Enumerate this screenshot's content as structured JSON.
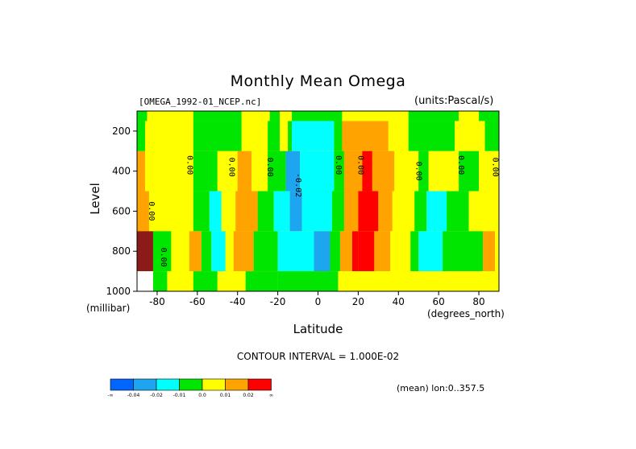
{
  "chart_data": {
    "type": "heatmap",
    "title": "Monthly Mean Omega",
    "source_label": "[OMEGA_1992-01_NCEP.nc]",
    "units_label": "(units:Pascal/s)",
    "xlabel": "Latitude",
    "x_units": "(degrees_north)",
    "ylabel": "Level",
    "y_units": "(millibar)",
    "xlim": [
      -90,
      90
    ],
    "ylim": [
      1000,
      100
    ],
    "x_ticks": [
      -80,
      -60,
      -40,
      -20,
      0,
      20,
      40,
      60,
      80
    ],
    "y_ticks": [
      200,
      400,
      600,
      800,
      1000
    ],
    "contour_interval_text": "CONTOUR INTERVAL = 1.000E-02",
    "mean_note": "(mean) lon:0..357.5",
    "contour_labels": [
      {
        "text": "0.00",
        "lat": -84,
        "lev": 600
      },
      {
        "text": "0.00",
        "lat": -65,
        "lev": 370
      },
      {
        "text": "0.00",
        "lat": -44,
        "lev": 380
      },
      {
        "text": "0.00",
        "lat": -25,
        "lev": 380
      },
      {
        "text": "-0.02",
        "lat": -11,
        "lev": 470
      },
      {
        "text": "0.00",
        "lat": 9,
        "lev": 370
      },
      {
        "text": "0.00",
        "lat": 20,
        "lev": 370
      },
      {
        "text": "0.00",
        "lat": 49,
        "lev": 400
      },
      {
        "text": "0.00",
        "lat": 70,
        "lev": 370
      },
      {
        "text": "0.00",
        "lat": 87,
        "lev": 380
      },
      {
        "text": "0.00",
        "lat": -78,
        "lev": 830
      }
    ],
    "colorbar": {
      "colors": [
        "#0066ff",
        "#1ea5ef",
        "#00ffff",
        "#00e600",
        "#ffff00",
        "#ffa300",
        "#ff0000"
      ],
      "labels": [
        "-∞",
        "-0.04",
        "-0.02",
        "-0.01",
        "0.0",
        "0.01",
        "0.02",
        "∞"
      ]
    },
    "field": {
      "note": "omega (Pa/s) regions, lat range [lat0,lat1] per pressure row",
      "rows": [
        {
          "lev": 100,
          "spans": [
            [
              -90,
              -85,
              "g"
            ],
            [
              -85,
              -62,
              "y"
            ],
            [
              -62,
              -38,
              "g"
            ],
            [
              -38,
              -24,
              "y"
            ],
            [
              -24,
              -19,
              "g"
            ],
            [
              -19,
              -13,
              "y"
            ],
            [
              -13,
              12,
              "g"
            ],
            [
              12,
              30,
              "y"
            ],
            [
              30,
              45,
              "y"
            ],
            [
              45,
              70,
              "g"
            ],
            [
              70,
              80,
              "y"
            ],
            [
              80,
              90,
              "g"
            ]
          ]
        },
        {
          "lev": 200,
          "spans": [
            [
              -90,
              -86,
              "g"
            ],
            [
              -86,
              -62,
              "y"
            ],
            [
              -62,
              -38,
              "g"
            ],
            [
              -38,
              -25,
              "y"
            ],
            [
              -25,
              -19,
              "g"
            ],
            [
              -19,
              -15,
              "y"
            ],
            [
              -15,
              -13,
              "g"
            ],
            [
              -13,
              8,
              "c"
            ],
            [
              8,
              12,
              "g"
            ],
            [
              12,
              35,
              "o"
            ],
            [
              35,
              45,
              "y"
            ],
            [
              45,
              68,
              "g"
            ],
            [
              68,
              83,
              "y"
            ],
            [
              83,
              90,
              "g"
            ]
          ]
        },
        {
          "lev": 400,
          "spans": [
            [
              -90,
              -86,
              "o"
            ],
            [
              -86,
              -62,
              "y"
            ],
            [
              -62,
              -50,
              "g"
            ],
            [
              -50,
              -40,
              "y"
            ],
            [
              -40,
              -33,
              "o"
            ],
            [
              -33,
              -25,
              "y"
            ],
            [
              -25,
              -16,
              "g"
            ],
            [
              -16,
              -9,
              "b"
            ],
            [
              -9,
              8,
              "c"
            ],
            [
              8,
              13,
              "g"
            ],
            [
              13,
              22,
              "o"
            ],
            [
              22,
              27,
              "r"
            ],
            [
              27,
              38,
              "o"
            ],
            [
              38,
              50,
              "y"
            ],
            [
              50,
              55,
              "g"
            ],
            [
              55,
              70,
              "y"
            ],
            [
              70,
              80,
              "g"
            ],
            [
              80,
              90,
              "y"
            ]
          ]
        },
        {
          "lev": 600,
          "spans": [
            [
              -90,
              -84,
              "o"
            ],
            [
              -84,
              -62,
              "y"
            ],
            [
              -62,
              -54,
              "g"
            ],
            [
              -54,
              -48,
              "c"
            ],
            [
              -48,
              -41,
              "y"
            ],
            [
              -41,
              -30,
              "o"
            ],
            [
              -30,
              -22,
              "g"
            ],
            [
              -22,
              -14,
              "c"
            ],
            [
              -14,
              -8,
              "b"
            ],
            [
              -8,
              7,
              "c"
            ],
            [
              7,
              13,
              "g"
            ],
            [
              13,
              20,
              "o"
            ],
            [
              20,
              30,
              "r"
            ],
            [
              30,
              37,
              "o"
            ],
            [
              37,
              48,
              "y"
            ],
            [
              48,
              54,
              "g"
            ],
            [
              54,
              64,
              "c"
            ],
            [
              64,
              75,
              "g"
            ],
            [
              75,
              90,
              "y"
            ]
          ]
        },
        {
          "lev": 800,
          "spans": [
            [
              -90,
              -82,
              "dr"
            ],
            [
              -82,
              -73,
              "g"
            ],
            [
              -73,
              -64,
              "y"
            ],
            [
              -64,
              -58,
              "o"
            ],
            [
              -58,
              -53,
              "g"
            ],
            [
              -53,
              -46,
              "c"
            ],
            [
              -46,
              -42,
              "y"
            ],
            [
              -42,
              -32,
              "o"
            ],
            [
              -32,
              -20,
              "g"
            ],
            [
              -20,
              -2,
              "c"
            ],
            [
              -2,
              6,
              "b"
            ],
            [
              6,
              11,
              "g"
            ],
            [
              11,
              17,
              "o"
            ],
            [
              17,
              20,
              "r"
            ],
            [
              20,
              28,
              "r"
            ],
            [
              28,
              36,
              "o"
            ],
            [
              36,
              46,
              "y"
            ],
            [
              46,
              50,
              "g"
            ],
            [
              50,
              62,
              "c"
            ],
            [
              62,
              82,
              "g"
            ],
            [
              82,
              88,
              "o"
            ],
            [
              88,
              90,
              "y"
            ]
          ]
        },
        {
          "lev": 1000,
          "spans": [
            [
              -90,
              -82,
              "w"
            ],
            [
              -82,
              -75,
              "g"
            ],
            [
              -75,
              -62,
              "y"
            ],
            [
              -62,
              -50,
              "g"
            ],
            [
              -50,
              -36,
              "y"
            ],
            [
              -36,
              -20,
              "g"
            ],
            [
              -20,
              10,
              "g"
            ],
            [
              10,
              36,
              "y"
            ],
            [
              36,
              50,
              "y"
            ],
            [
              50,
              90,
              "y"
            ]
          ]
        }
      ]
    }
  }
}
